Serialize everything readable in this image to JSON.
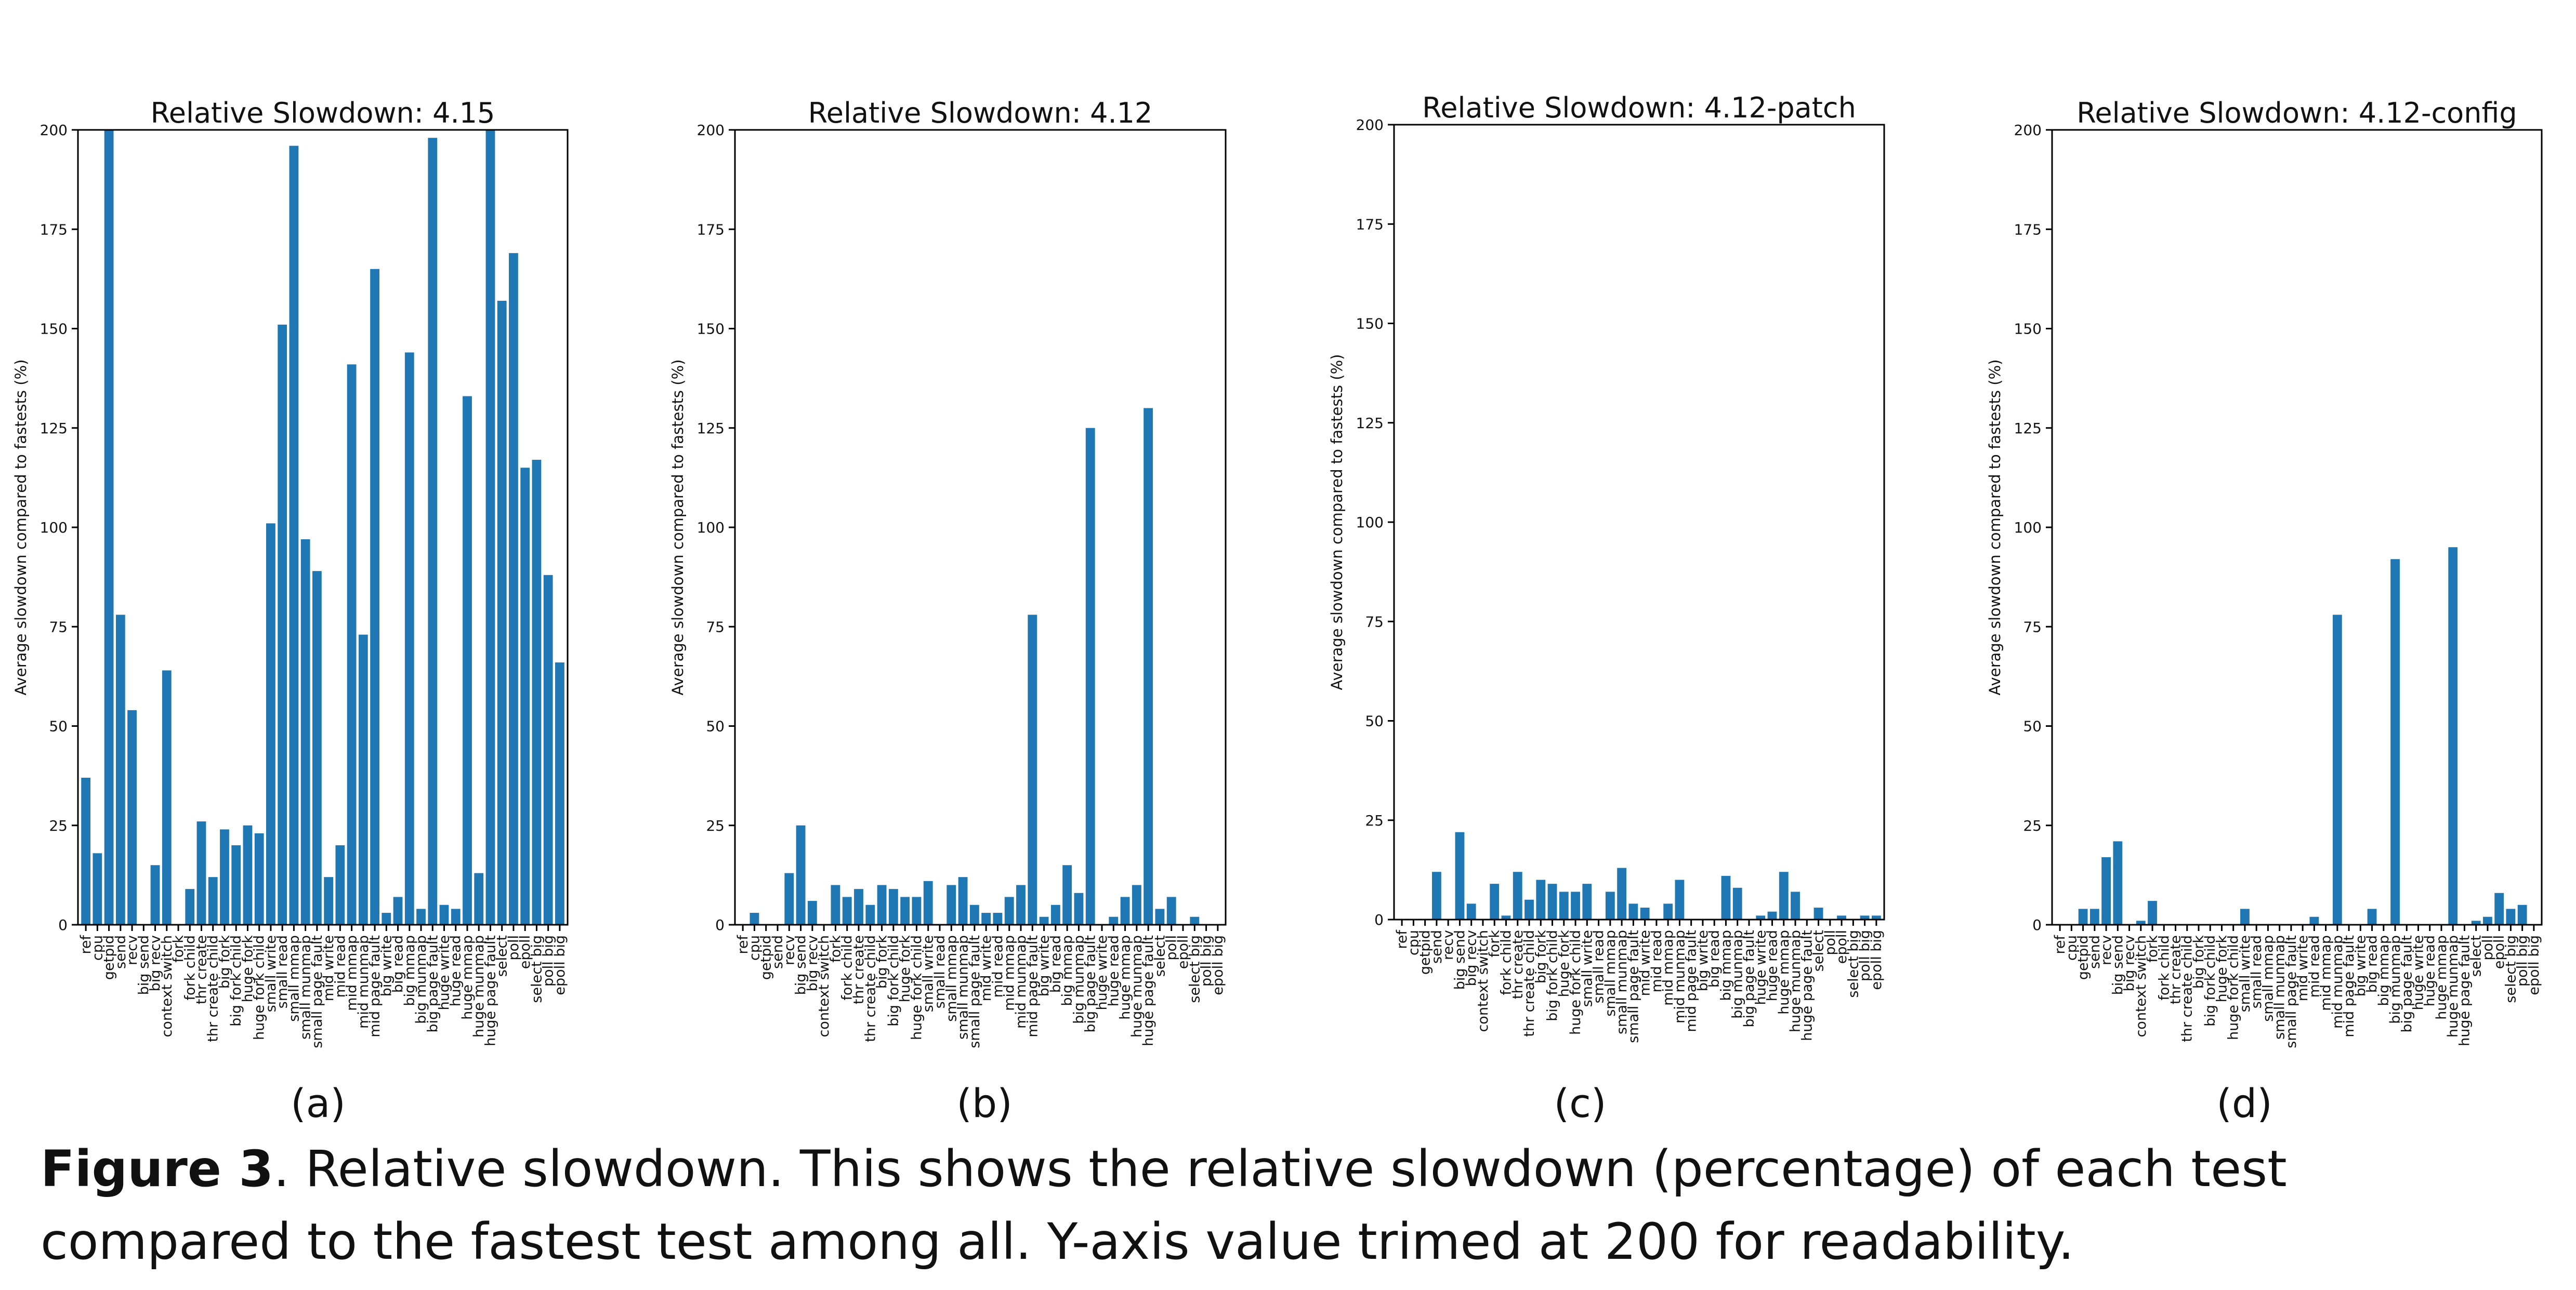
{
  "colors": {
    "bar": "#1f77b4",
    "axis": "#000000",
    "background": "#ffffff"
  },
  "chart_data": [
    {
      "type": "bar",
      "title": "Relative Slowdown: 4.15",
      "panel_label": "(a)",
      "ylabel": "Average slowdown compared to fastests (%)",
      "ylim": [
        0,
        200
      ],
      "yticks": [
        0,
        25,
        50,
        75,
        100,
        125,
        150,
        175,
        200
      ],
      "grid": false,
      "categories": [
        "ref",
        "cpu",
        "getpid",
        "send",
        "recv",
        "big send",
        "big recv",
        "context switch",
        "fork",
        "fork child",
        "thr create",
        "thr create child",
        "big fork",
        "big fork child",
        "huge fork",
        "huge fork child",
        "small write",
        "small read",
        "small mmap",
        "small munmap",
        "small page fault",
        "mid write",
        "mid read",
        "mid mmap",
        "mid munmap",
        "mid page fault",
        "big write",
        "big read",
        "big mmap",
        "big munmap",
        "big page fault",
        "huge write",
        "huge read",
        "huge mmap",
        "huge munmap",
        "huge page fault",
        "select",
        "poll",
        "epoll",
        "select big",
        "poll big",
        "epoll big"
      ],
      "values": [
        37,
        18,
        200,
        78,
        54,
        0,
        15,
        64,
        0,
        9,
        26,
        12,
        24,
        20,
        25,
        23,
        101,
        151,
        196,
        97,
        89,
        12,
        20,
        141,
        73,
        165,
        3,
        7,
        144,
        4,
        198,
        5,
        4,
        133,
        13,
        200,
        157,
        169,
        115,
        117,
        88,
        66
      ]
    },
    {
      "type": "bar",
      "title": "Relative Slowdown: 4.12",
      "panel_label": "(b)",
      "ylabel": "Average slowdown compared to fastests (%)",
      "ylim": [
        0,
        200
      ],
      "yticks": [
        0,
        25,
        50,
        75,
        100,
        125,
        150,
        175,
        200
      ],
      "grid": false,
      "categories": [
        "ref",
        "cpu",
        "getpid",
        "send",
        "recv",
        "big send",
        "big recv",
        "context switch",
        "fork",
        "fork child",
        "thr create",
        "thr create child",
        "big fork",
        "big fork child",
        "huge fork",
        "huge fork child",
        "small write",
        "small read",
        "small mmap",
        "small munmap",
        "small page fault",
        "mid write",
        "mid read",
        "mid mmap",
        "mid munmap",
        "mid page fault",
        "big write",
        "big read",
        "big mmap",
        "big munmap",
        "big page fault",
        "huge write",
        "huge read",
        "huge mmap",
        "huge munmap",
        "huge page fault",
        "select",
        "poll",
        "epoll",
        "select big",
        "poll big",
        "epoll big"
      ],
      "values": [
        0,
        3,
        0,
        0,
        13,
        25,
        6,
        0,
        10,
        7,
        9,
        5,
        10,
        9,
        7,
        7,
        11,
        0,
        10,
        12,
        5,
        3,
        3,
        7,
        10,
        78,
        2,
        5,
        15,
        8,
        125,
        0,
        2,
        7,
        10,
        130,
        4,
        7,
        0,
        2,
        0,
        0
      ]
    },
    {
      "type": "bar",
      "title": "Relative Slowdown: 4.12-patch",
      "panel_label": "(c)",
      "ylabel": "Average slowdown compared to fastests (%)",
      "ylim": [
        0,
        200
      ],
      "yticks": [
        0,
        25,
        50,
        75,
        100,
        125,
        150,
        175,
        200
      ],
      "grid": false,
      "categories": [
        "ref",
        "cpu",
        "getpid",
        "send",
        "recv",
        "big send",
        "big recv",
        "context switch",
        "fork",
        "fork child",
        "thr create",
        "thr create child",
        "big fork",
        "big fork child",
        "huge fork",
        "huge fork child",
        "small write",
        "small read",
        "small mmap",
        "small munmap",
        "small page fault",
        "mid write",
        "mid read",
        "mid mmap",
        "mid munmap",
        "mid page fault",
        "big write",
        "big read",
        "big mmap",
        "big munmap",
        "big page fault",
        "huge write",
        "huge read",
        "huge mmap",
        "huge munmap",
        "huge page fault",
        "select",
        "poll",
        "epoll",
        "select big",
        "poll big",
        "epoll big"
      ],
      "values": [
        0,
        0,
        0,
        12,
        0,
        22,
        4,
        0,
        9,
        1,
        12,
        5,
        10,
        9,
        7,
        7,
        9,
        0,
        7,
        13,
        4,
        3,
        0,
        4,
        10,
        0,
        0,
        0,
        11,
        8,
        0,
        1,
        2,
        12,
        7,
        0,
        3,
        0,
        1,
        0,
        1,
        1
      ]
    },
    {
      "type": "bar",
      "title": "Relative Slowdown: 4.12-config",
      "panel_label": "(d)",
      "ylabel": "Average slowdown compared to fastests (%)",
      "ylim": [
        0,
        200
      ],
      "yticks": [
        0,
        25,
        50,
        75,
        100,
        125,
        150,
        175,
        200
      ],
      "grid": false,
      "categories": [
        "ref",
        "cpu",
        "getpid",
        "send",
        "recv",
        "big send",
        "big recv",
        "context switch",
        "fork",
        "fork child",
        "thr create",
        "thr create child",
        "big fork",
        "big fork child",
        "huge fork",
        "huge fork child",
        "small write",
        "small read",
        "small mmap",
        "small munmap",
        "small page fault",
        "mid write",
        "mid read",
        "mid mmap",
        "mid munmap",
        "mid page fault",
        "big write",
        "big read",
        "big mmap",
        "big munmap",
        "big page fault",
        "huge write",
        "huge read",
        "huge mmap",
        "huge munmap",
        "huge page fault",
        "select",
        "poll",
        "epoll",
        "select big",
        "poll big",
        "epoll big"
      ],
      "values": [
        0,
        0,
        4,
        4,
        17,
        21,
        0,
        1,
        6,
        0,
        0,
        0,
        0,
        0,
        0,
        0,
        4,
        0,
        0,
        0,
        0,
        0,
        2,
        0,
        78,
        0,
        0,
        4,
        0,
        92,
        0,
        0,
        0,
        0,
        95,
        0,
        1,
        2,
        8,
        4,
        5,
        0
      ]
    }
  ],
  "caption": {
    "label": "Figure 3",
    "text": ". Relative slowdown. This shows the relative slowdown (percentage) of each test compared to the fastest test among all. Y-axis value trimed at 200 for readability."
  }
}
